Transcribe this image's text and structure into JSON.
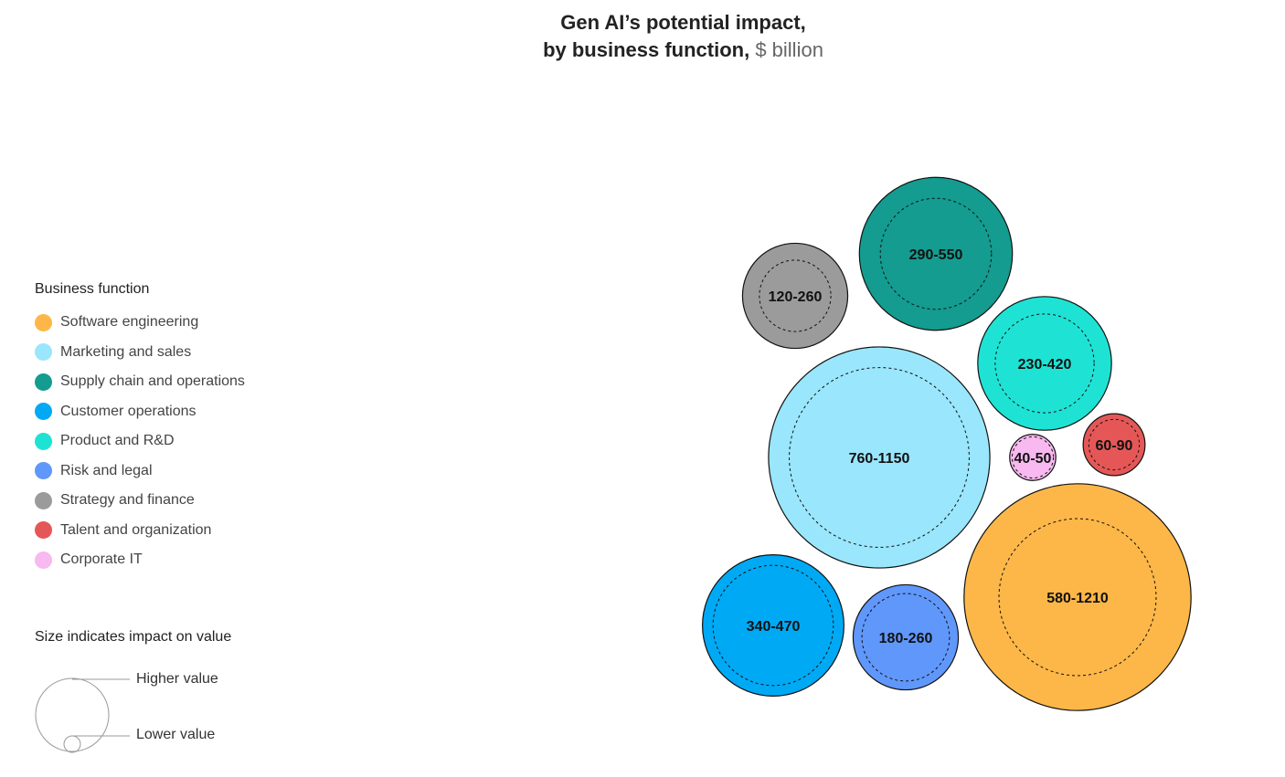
{
  "title": {
    "line1": "Gen AI’s potential impact,",
    "line2_bold": "by business function,",
    "line2_unit": "$ billion"
  },
  "legend": {
    "title": "Business function",
    "items": [
      {
        "label": "Software engineering",
        "color": "#FDB748"
      },
      {
        "label": "Marketing and sales",
        "color": "#9AE6FC"
      },
      {
        "label": "Supply chain and operations",
        "color": "#139C8F"
      },
      {
        "label": "Customer operations",
        "color": "#00A9F4"
      },
      {
        "label": "Product and R&D",
        "color": "#1EE3D4"
      },
      {
        "label": "Risk and legal",
        "color": "#6097FB"
      },
      {
        "label": "Strategy and finance",
        "color": "#9B9B9B"
      },
      {
        "label": "Talent and organization",
        "color": "#E55757"
      },
      {
        "label": "Corporate IT",
        "color": "#F8B8F0"
      }
    ]
  },
  "size_key": {
    "title": "Size indicates impact on value",
    "higher": "Higher value",
    "lower": "Lower value"
  },
  "chart_data": {
    "type": "bubble",
    "unit": "$ billion",
    "series": [
      {
        "name": "Software engineering",
        "label": "580-1210",
        "low": 580,
        "high": 1210,
        "color": "#FDB748"
      },
      {
        "name": "Marketing and sales",
        "label": "760-1150",
        "low": 760,
        "high": 1150,
        "color": "#9AE6FC"
      },
      {
        "name": "Supply chain and operations",
        "label": "290-550",
        "low": 290,
        "high": 550,
        "color": "#139C8F"
      },
      {
        "name": "Customer operations",
        "label": "340-470",
        "low": 340,
        "high": 470,
        "color": "#00A9F4"
      },
      {
        "name": "Product and R&D",
        "label": "230-420",
        "low": 230,
        "high": 420,
        "color": "#1EE3D4"
      },
      {
        "name": "Risk and legal",
        "label": "180-260",
        "low": 180,
        "high": 260,
        "color": "#6097FB"
      },
      {
        "name": "Strategy and finance",
        "label": "120-260",
        "low": 120,
        "high": 260,
        "color": "#9B9B9B"
      },
      {
        "name": "Talent and organization",
        "label": "60-90",
        "low": 60,
        "high": 90,
        "color": "#E55757"
      },
      {
        "name": "Corporate IT",
        "label": "40-50",
        "low": 40,
        "high": 50,
        "color": "#F8B8F0"
      }
    ]
  }
}
